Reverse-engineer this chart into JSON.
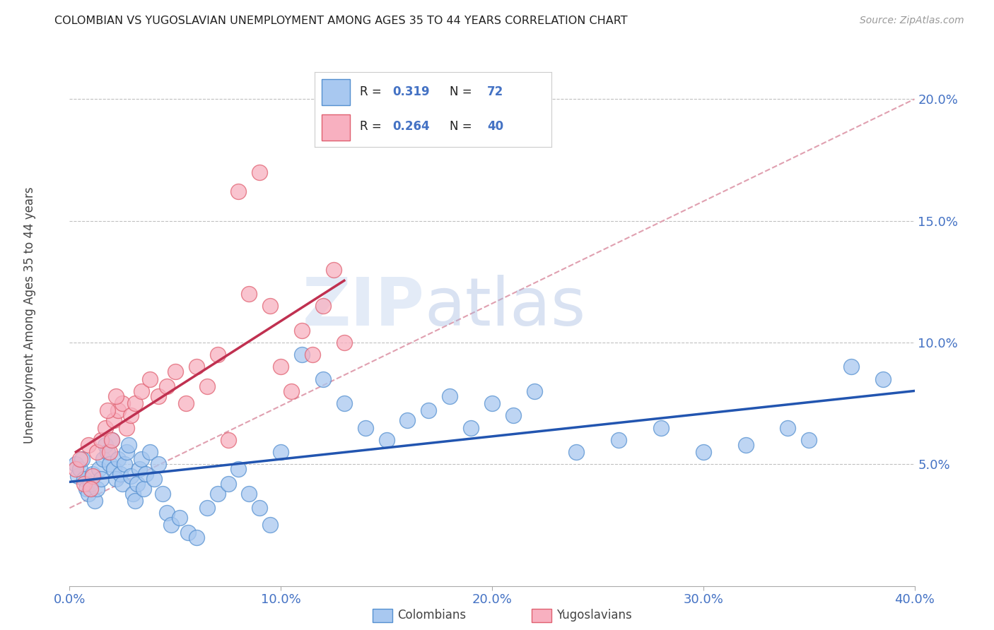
{
  "title": "COLOMBIAN VS YUGOSLAVIAN UNEMPLOYMENT AMONG AGES 35 TO 44 YEARS CORRELATION CHART",
  "source": "Source: ZipAtlas.com",
  "ylabel": "Unemployment Among Ages 35 to 44 years",
  "tick_color": "#4472c4",
  "xlim": [
    0.0,
    0.4
  ],
  "ylim": [
    0.0,
    0.22
  ],
  "xticks": [
    0.0,
    0.1,
    0.2,
    0.3,
    0.4
  ],
  "xtick_labels": [
    "0.0%",
    "10.0%",
    "20.0%",
    "30.0%",
    "40.0%"
  ],
  "yticks": [
    0.05,
    0.1,
    0.15,
    0.2
  ],
  "ytick_labels": [
    "5.0%",
    "10.0%",
    "15.0%",
    "20.0%"
  ],
  "colombian_R": 0.319,
  "colombian_N": 72,
  "yugoslavian_R": 0.264,
  "yugoslavian_N": 40,
  "colombian_color": "#a8c8f0",
  "colombian_edge": "#5590d0",
  "yugoslavian_color": "#f8b0c0",
  "yugoslavian_edge": "#e06070",
  "trendline_colombian_color": "#2255b0",
  "trendline_yugoslavian_color": "#c03050",
  "dashed_line_color": "#e0a0b0",
  "grid_color": "#c0c0c0",
  "background_color": "#ffffff",
  "watermark_zip": "ZIP",
  "watermark_atlas": "atlas",
  "legend_box_color": "#f0f4ff",
  "legend_border_color": "#c8cce0",
  "colombian_x": [
    0.003,
    0.004,
    0.005,
    0.006,
    0.007,
    0.008,
    0.009,
    0.01,
    0.011,
    0.012,
    0.013,
    0.014,
    0.015,
    0.016,
    0.017,
    0.018,
    0.019,
    0.02,
    0.021,
    0.022,
    0.023,
    0.024,
    0.025,
    0.026,
    0.027,
    0.028,
    0.029,
    0.03,
    0.031,
    0.032,
    0.033,
    0.034,
    0.035,
    0.036,
    0.038,
    0.04,
    0.042,
    0.044,
    0.046,
    0.048,
    0.052,
    0.056,
    0.06,
    0.065,
    0.07,
    0.075,
    0.08,
    0.085,
    0.09,
    0.095,
    0.1,
    0.11,
    0.12,
    0.13,
    0.14,
    0.15,
    0.16,
    0.17,
    0.18,
    0.19,
    0.2,
    0.21,
    0.22,
    0.24,
    0.26,
    0.28,
    0.3,
    0.32,
    0.34,
    0.35,
    0.37,
    0.385
  ],
  "colombian_y": [
    0.05,
    0.045,
    0.048,
    0.052,
    0.044,
    0.04,
    0.038,
    0.042,
    0.046,
    0.035,
    0.04,
    0.048,
    0.044,
    0.052,
    0.058,
    0.055,
    0.05,
    0.06,
    0.048,
    0.044,
    0.052,
    0.046,
    0.042,
    0.05,
    0.055,
    0.058,
    0.045,
    0.038,
    0.035,
    0.042,
    0.048,
    0.052,
    0.04,
    0.046,
    0.055,
    0.044,
    0.05,
    0.038,
    0.03,
    0.025,
    0.028,
    0.022,
    0.02,
    0.032,
    0.038,
    0.042,
    0.048,
    0.038,
    0.032,
    0.025,
    0.055,
    0.095,
    0.085,
    0.075,
    0.065,
    0.06,
    0.068,
    0.072,
    0.078,
    0.065,
    0.075,
    0.07,
    0.08,
    0.055,
    0.06,
    0.065,
    0.055,
    0.058,
    0.065,
    0.06,
    0.09,
    0.085
  ],
  "yugoslavian_x": [
    0.003,
    0.005,
    0.007,
    0.009,
    0.011,
    0.013,
    0.015,
    0.017,
    0.019,
    0.02,
    0.021,
    0.023,
    0.025,
    0.027,
    0.029,
    0.031,
    0.034,
    0.038,
    0.042,
    0.046,
    0.05,
    0.055,
    0.06,
    0.065,
    0.07,
    0.075,
    0.08,
    0.085,
    0.09,
    0.095,
    0.1,
    0.105,
    0.11,
    0.115,
    0.12,
    0.125,
    0.13,
    0.018,
    0.022,
    0.01
  ],
  "yugoslavian_y": [
    0.048,
    0.052,
    0.042,
    0.058,
    0.045,
    0.055,
    0.06,
    0.065,
    0.055,
    0.06,
    0.068,
    0.072,
    0.075,
    0.065,
    0.07,
    0.075,
    0.08,
    0.085,
    0.078,
    0.082,
    0.088,
    0.075,
    0.09,
    0.082,
    0.095,
    0.06,
    0.162,
    0.12,
    0.17,
    0.115,
    0.09,
    0.08,
    0.105,
    0.095,
    0.115,
    0.13,
    0.1,
    0.072,
    0.078,
    0.04
  ]
}
